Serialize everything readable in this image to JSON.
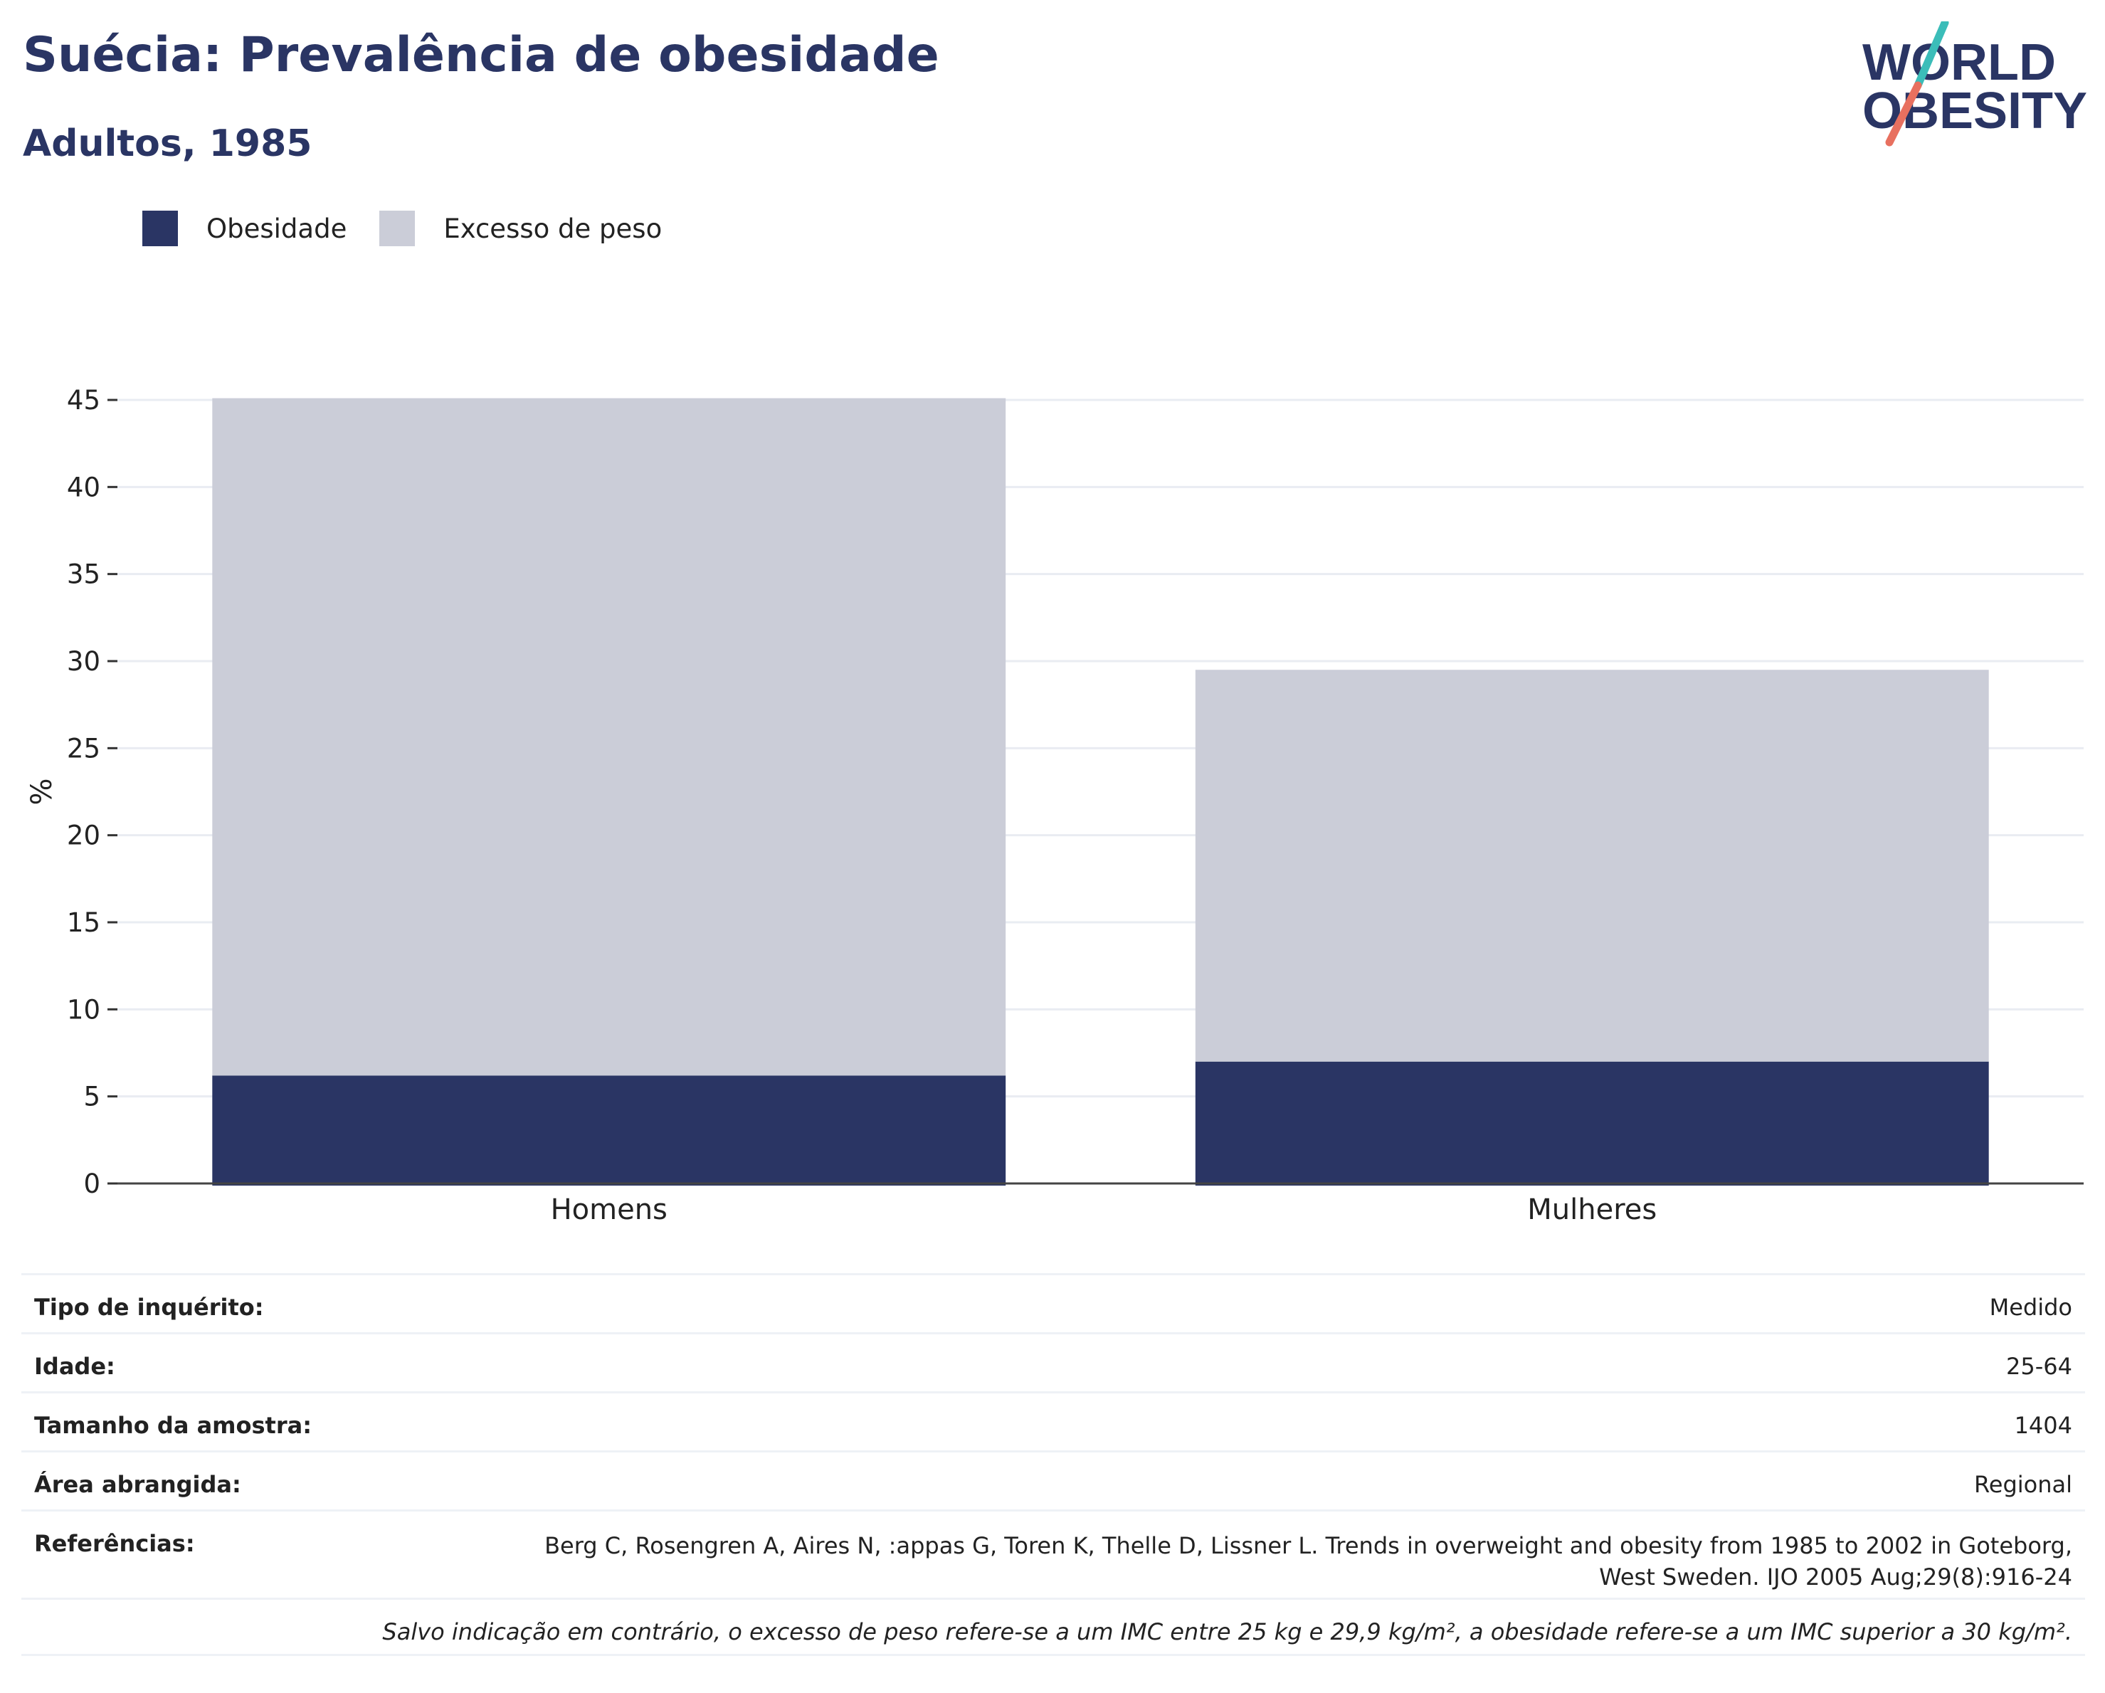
{
  "header": {
    "title": "Suécia: Prevalência de obesidade",
    "subtitle": "Adultos, 1985"
  },
  "logo": {
    "line1": "WORLD",
    "line2": "OBESITY",
    "colors": {
      "text": "#2a3564",
      "slash_teal": "#3bbdb9",
      "slash_red": "#e8705f"
    }
  },
  "legend": [
    {
      "label": "Obesidade",
      "color": "#2a3564"
    },
    {
      "label": "Excesso de peso",
      "color": "#cbcdd8"
    }
  ],
  "chart_data": {
    "type": "bar",
    "stacked": true,
    "categories": [
      "Homens",
      "Mulheres"
    ],
    "series": [
      {
        "name": "Obesidade",
        "values": [
          6.2,
          7.0
        ],
        "color": "#2a3564"
      },
      {
        "name": "Excesso de peso",
        "values": [
          38.9,
          22.5
        ],
        "color": "#cbcdd8"
      }
    ],
    "ylabel": "%",
    "ylim": [
      0,
      45
    ],
    "yticks": [
      0,
      5,
      10,
      15,
      20,
      25,
      30,
      35,
      40,
      45
    ],
    "grid": true,
    "legend_position": "top-left"
  },
  "info": [
    {
      "key": "Tipo de inquérito:",
      "value": "Medido"
    },
    {
      "key": "Idade:",
      "value": "25-64"
    },
    {
      "key": "Tamanho da amostra:",
      "value": "1404"
    },
    {
      "key": "Área abrangida:",
      "value": "Regional"
    },
    {
      "key": "Referências:",
      "value": "Berg C, Rosengren A, Aires N, :appas G, Toren K, Thelle D, Lissner L. Trends in overweight and obesity from 1985 to 2002 in Goteborg, West Sweden. IJO 2005 Aug;29(8):916-24"
    }
  ],
  "note": "Salvo indicação em contrário, o excesso de peso refere-se a um IMC entre 25 kg e 29,9 kg/m², a obesidade refere-se a um IMC superior a 30 kg/m²."
}
